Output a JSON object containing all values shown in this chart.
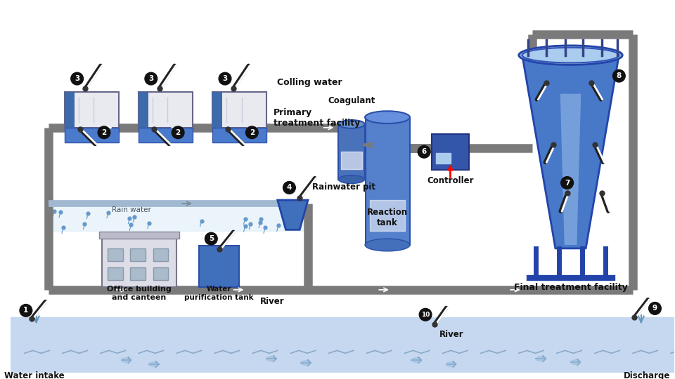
{
  "bg_color": "#ffffff",
  "pipe_color": "#7a7a7a",
  "pipe_lw": 9,
  "water_fill": "#c5d8f0",
  "water_border": "#99b8d8",
  "dark_blue": "#2a4fa0",
  "mid_blue": "#4477cc",
  "light_blue": "#7aabdd",
  "tank_blue": "#5080c0",
  "labels": {
    "cooling": "Colling water",
    "primary": "Primary\ntreatment facility",
    "coagulant": "Coagulant",
    "reaction": "Reaction\ntank",
    "controller": "Controller",
    "final": "Final treatment facility",
    "rainwater": "Rain water",
    "rainwater_pit": "Rainwater pit",
    "office": "Office building\nand canteen",
    "purification": "Water\npurification tank",
    "river1": "River",
    "river2": "River",
    "discharge": "Discharge",
    "water_intake": "Water intake"
  },
  "numbers": [
    "1",
    "2",
    "3",
    "4",
    "5",
    "6",
    "7",
    "8",
    "9",
    "10"
  ]
}
